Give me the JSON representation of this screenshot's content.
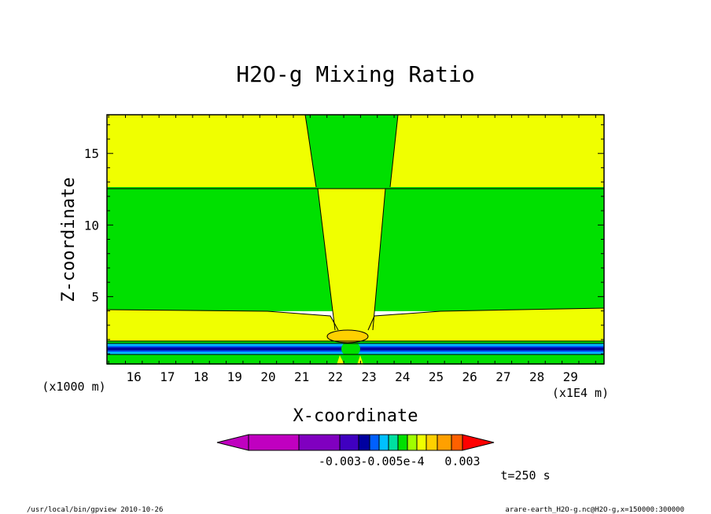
{
  "chart_data": {
    "type": "heatmap",
    "title": "H2O-g Mixing Ratio",
    "xlabel": "X-coordinate",
    "ylabel": "Z-coordinate",
    "x_unit": "(x1E4 m)",
    "y_unit": "(x1000 m)",
    "xlim": [
      15.2,
      30.0
    ],
    "ylim": [
      0.3,
      17.7
    ],
    "x_ticks": [
      "16",
      "17",
      "18",
      "19",
      "20",
      "21",
      "22",
      "23",
      "24",
      "25",
      "26",
      "27",
      "28",
      "29"
    ],
    "y_ticks": [
      "5",
      "10",
      "15"
    ],
    "time_label": "t=250 s",
    "colorbar_labels": [
      "-0.003",
      "-0.005e-4",
      "0.003"
    ],
    "colorbar_colors": [
      "#c000c0",
      "#8000c0",
      "#4000c0",
      "#0000a0",
      "#0060ff",
      "#00c0ff",
      "#00e0a0",
      "#00e000",
      "#a0ff00",
      "#f0ff00",
      "#ffd000",
      "#ffa000",
      "#ff6000",
      "#ff0000"
    ],
    "field_colors": {
      "upper_band": "#f0ff00",
      "middle_band": "#00e000",
      "column": "#f0ff00",
      "lower_band": "#f0ff00",
      "surface_layer": "#0000a0"
    }
  },
  "footer": {
    "left": "/usr/local/bin/gpview  2010-10-26",
    "right": "arare-earth_H2O-g.nc@H2O-g,x=150000:300000"
  }
}
